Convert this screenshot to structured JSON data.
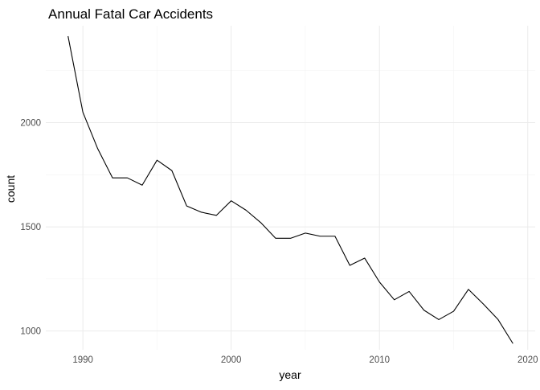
{
  "chart_data": {
    "type": "line",
    "title": "Annual Fatal Car Accidents",
    "xlabel": "year",
    "ylabel": "count",
    "grid": true,
    "legend": "none",
    "xlim": [
      1987.5,
      2020.5
    ],
    "ylim": [
      910,
      2465
    ],
    "x_ticks": [
      1990,
      2000,
      2010,
      2020
    ],
    "x_tick_labels": [
      "1990",
      "2000",
      "2010",
      "2020"
    ],
    "x_minor_ticks": [
      1995,
      2005,
      2015
    ],
    "y_ticks": [
      1000,
      1500,
      2000
    ],
    "y_tick_labels": [
      "1000",
      "1500",
      "2000"
    ],
    "y_minor_ticks": [
      1250,
      1750,
      2250
    ],
    "line_color": "#000000",
    "series": [
      {
        "x": [
          1989,
          1990,
          1991,
          1992,
          1993,
          1994,
          1995,
          1996,
          1997,
          1998,
          1999,
          2000,
          2001,
          2002,
          2003,
          2004,
          2005,
          2006,
          2007,
          2008,
          2009,
          2010,
          2011,
          2012,
          2013,
          2014,
          2015,
          2016,
          2017,
          2018,
          2019
        ],
        "values": [
          2415,
          2050,
          1875,
          1735,
          1735,
          1700,
          1820,
          1770,
          1600,
          1570,
          1555,
          1625,
          1580,
          1520,
          1445,
          1445,
          1470,
          1455,
          1455,
          1315,
          1350,
          1235,
          1150,
          1190,
          1100,
          1055,
          1095,
          1200,
          1130,
          1055,
          940
        ]
      }
    ]
  }
}
